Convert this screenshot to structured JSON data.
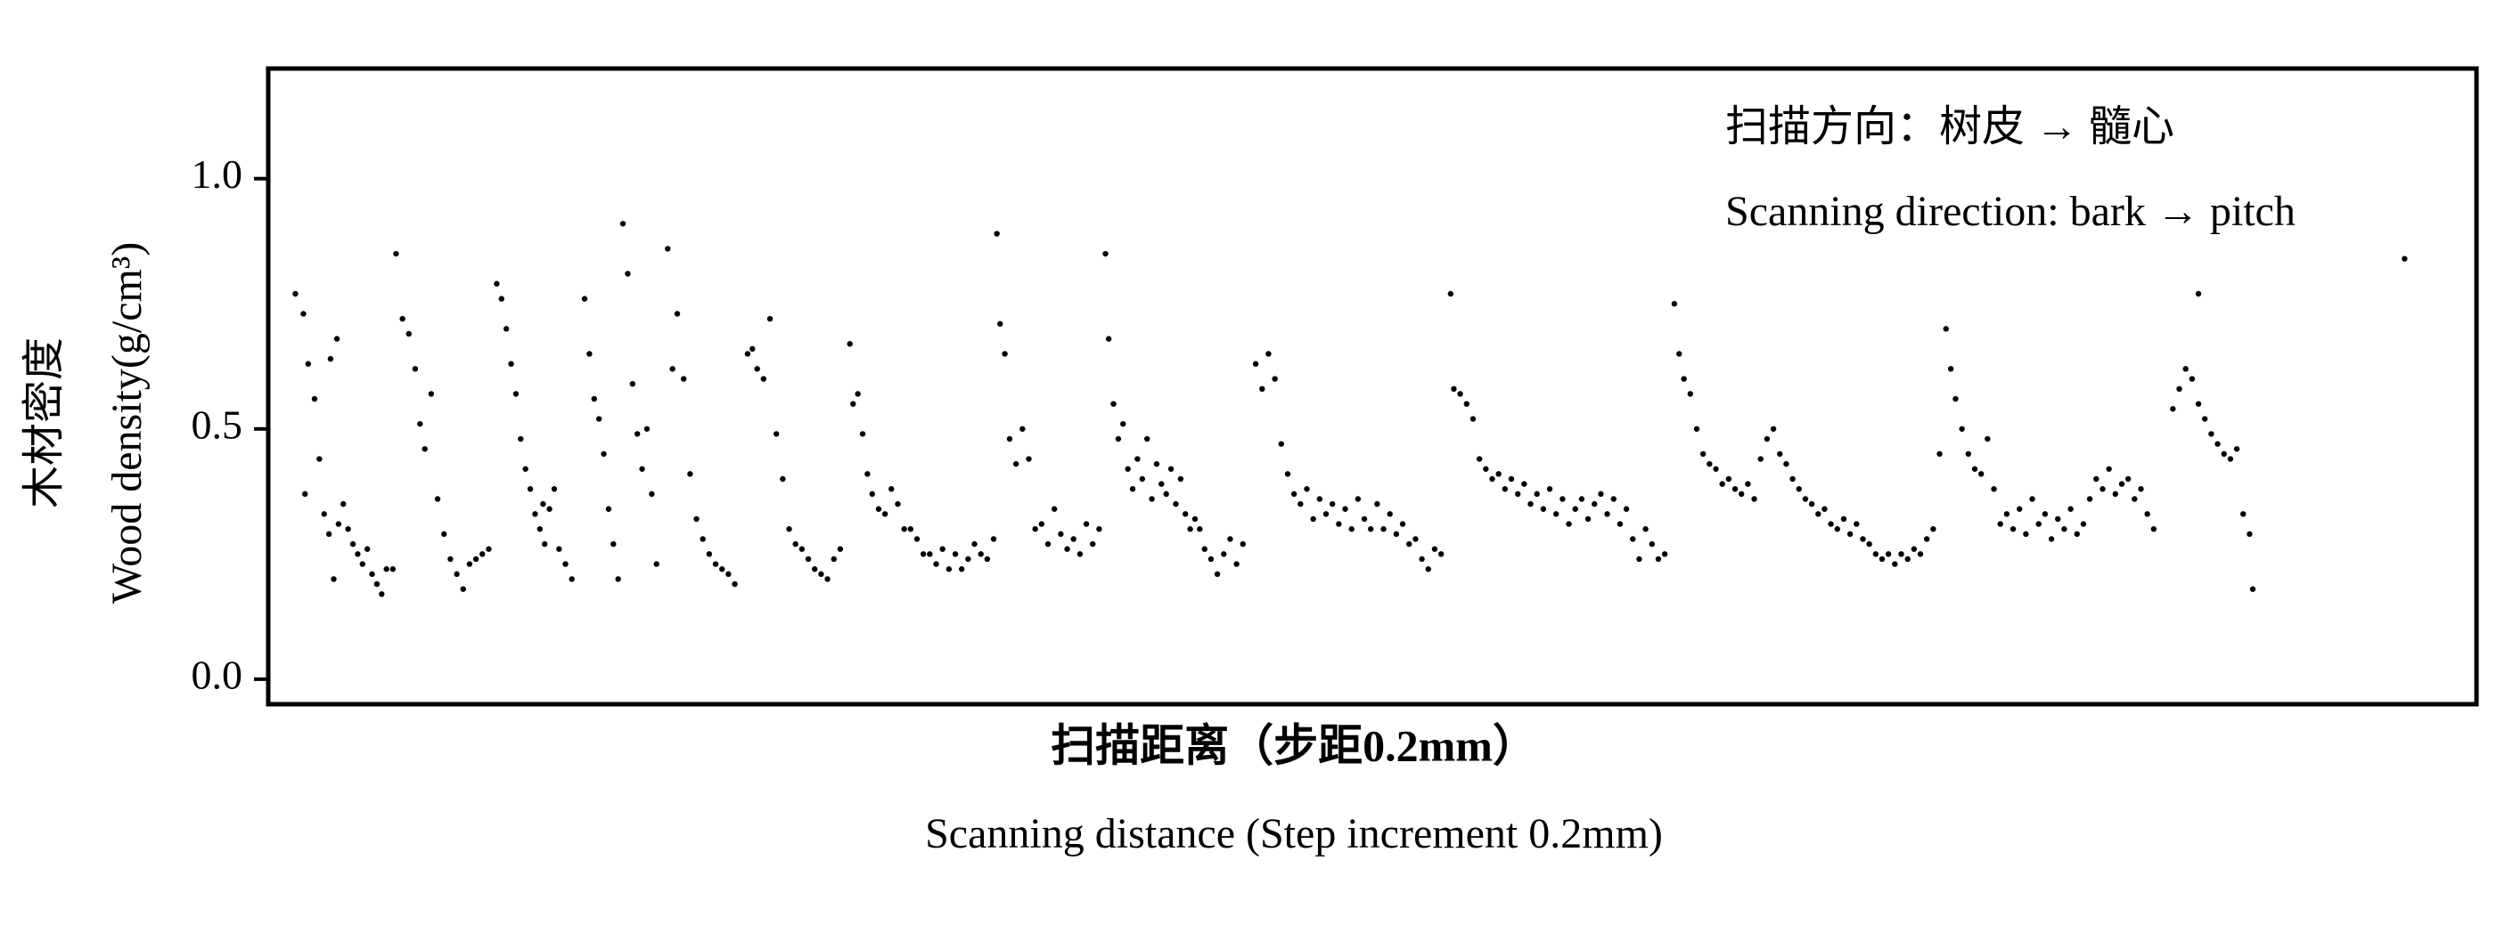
{
  "chart_data": {
    "type": "scatter",
    "annotations": [
      "扫描方向：树皮 → 髓心",
      "Scanning direction: bark → pitch"
    ],
    "x_label": [
      "扫描距离（步距0.2mm）",
      "Scanning distance (Step increment 0.2mm)"
    ],
    "y_label": [
      "木材密度",
      "Wood density(g/cm³)"
    ],
    "xlim": [
      168,
      1550
    ],
    "ylim": [
      -0.05,
      1.22
    ],
    "yticks": [
      {
        "value": 0,
        "label": "0.0"
      },
      0.5,
      {
        "value": 1,
        "label": "1.0"
      }
    ],
    "color": "#000000",
    "x": [
      185,
      190,
      193,
      197,
      200,
      203,
      206,
      209,
      212,
      215,
      218,
      221,
      224,
      227,
      230,
      233,
      236,
      239,
      242,
      246,
      191,
      207,
      211,
      248,
      252,
      256,
      260,
      263,
      266,
      270,
      274,
      278,
      282,
      286,
      290,
      294,
      298,
      302,
      306,
      311,
      314,
      317,
      320,
      323,
      326,
      329,
      332,
      335,
      338,
      341,
      344,
      347,
      350,
      354,
      358,
      340,
      366,
      369,
      372,
      375,
      378,
      381,
      384,
      387,
      390,
      393,
      396,
      399,
      402,
      405,
      408,
      411,
      418,
      421,
      424,
      428,
      432,
      436,
      440,
      444,
      448,
      452,
      456,
      460,
      468,
      471,
      474,
      478,
      482,
      486,
      490,
      494,
      498,
      502,
      506,
      510,
      514,
      518,
      522,
      526,
      532,
      534,
      537,
      540,
      543,
      546,
      550,
      554,
      558,
      562,
      566,
      570,
      574,
      578,
      582,
      586,
      590,
      594,
      598,
      602,
      606,
      610,
      614,
      618,
      622,
      624,
      626,
      629,
      632,
      636,
      640,
      644,
      648,
      652,
      656,
      660,
      664,
      668,
      672,
      676,
      680,
      684,
      688,
      692,
      694,
      697,
      700,
      703,
      706,
      709,
      712,
      715,
      718,
      721,
      724,
      727,
      730,
      733,
      736,
      739,
      742,
      745,
      748,
      751,
      754,
      758,
      762,
      766,
      770,
      774,
      778,
      786,
      790,
      794,
      798,
      802,
      806,
      810,
      814,
      818,
      822,
      826,
      830,
      834,
      838,
      842,
      846,
      850,
      854,
      858,
      862,
      866,
      870,
      874,
      878,
      882,
      886,
      890,
      894,
      898,
      902,
      908,
      910,
      914,
      918,
      922,
      926,
      930,
      934,
      938,
      942,
      946,
      950,
      954,
      958,
      962,
      966,
      970,
      974,
      978,
      982,
      986,
      990,
      994,
      998,
      1002,
      1006,
      1010,
      1014,
      1018,
      1022,
      1026,
      1030,
      1034,
      1038,
      1042,
      1048,
      1051,
      1054,
      1058,
      1062,
      1066,
      1070,
      1074,
      1078,
      1082,
      1086,
      1090,
      1094,
      1098,
      1102,
      1106,
      1110,
      1114,
      1118,
      1122,
      1126,
      1130,
      1134,
      1138,
      1142,
      1146,
      1150,
      1154,
      1158,
      1162,
      1166,
      1170,
      1174,
      1178,
      1182,
      1186,
      1190,
      1194,
      1198,
      1202,
      1206,
      1210,
      1214,
      1218,
      1221,
      1224,
      1228,
      1232,
      1236,
      1240,
      1244,
      1248,
      1252,
      1256,
      1260,
      1264,
      1268,
      1272,
      1276,
      1280,
      1284,
      1288,
      1292,
      1296,
      1300,
      1304,
      1308,
      1312,
      1316,
      1320,
      1324,
      1328,
      1332,
      1336,
      1340,
      1344,
      1348,
      1360,
      1364,
      1368,
      1372,
      1376,
      1380,
      1384,
      1388,
      1392,
      1396,
      1400,
      1404,
      1408,
      1410,
      1376,
      1505
    ],
    "values": [
      0.77,
      0.73,
      0.63,
      0.56,
      0.44,
      0.33,
      0.29,
      0.2,
      0.31,
      0.35,
      0.3,
      0.27,
      0.25,
      0.23,
      0.26,
      0.21,
      0.19,
      0.17,
      0.22,
      0.22,
      0.37,
      0.64,
      0.68,
      0.85,
      0.72,
      0.69,
      0.62,
      0.51,
      0.46,
      0.57,
      0.36,
      0.29,
      0.24,
      0.21,
      0.18,
      0.23,
      0.24,
      0.25,
      0.26,
      0.79,
      0.76,
      0.7,
      0.63,
      0.57,
      0.48,
      0.42,
      0.38,
      0.33,
      0.3,
      0.27,
      0.34,
      0.38,
      0.26,
      0.23,
      0.2,
      0.35,
      0.76,
      0.65,
      0.56,
      0.52,
      0.45,
      0.34,
      0.27,
      0.2,
      0.91,
      0.81,
      0.59,
      0.49,
      0.42,
      0.5,
      0.37,
      0.23,
      0.86,
      0.62,
      0.73,
      0.6,
      0.41,
      0.32,
      0.28,
      0.25,
      0.23,
      0.22,
      0.21,
      0.19,
      0.65,
      0.66,
      0.62,
      0.6,
      0.72,
      0.49,
      0.4,
      0.3,
      0.27,
      0.26,
      0.24,
      0.22,
      0.21,
      0.2,
      0.24,
      0.26,
      0.67,
      0.55,
      0.57,
      0.49,
      0.41,
      0.37,
      0.34,
      0.33,
      0.38,
      0.35,
      0.3,
      0.3,
      0.28,
      0.25,
      0.25,
      0.23,
      0.26,
      0.22,
      0.25,
      0.22,
      0.24,
      0.27,
      0.25,
      0.24,
      0.28,
      0.89,
      0.71,
      0.65,
      0.48,
      0.43,
      0.5,
      0.44,
      0.3,
      0.31,
      0.27,
      0.34,
      0.29,
      0.26,
      0.28,
      0.25,
      0.31,
      0.27,
      0.3,
      0.85,
      0.68,
      0.55,
      0.48,
      0.51,
      0.42,
      0.38,
      0.44,
      0.4,
      0.48,
      0.36,
      0.43,
      0.39,
      0.37,
      0.42,
      0.35,
      0.4,
      0.33,
      0.3,
      0.32,
      0.3,
      0.26,
      0.24,
      0.21,
      0.25,
      0.28,
      0.23,
      0.27,
      0.63,
      0.58,
      0.65,
      0.6,
      0.47,
      0.41,
      0.37,
      0.35,
      0.38,
      0.32,
      0.36,
      0.33,
      0.35,
      0.31,
      0.34,
      0.3,
      0.36,
      0.32,
      0.3,
      0.35,
      0.3,
      0.33,
      0.29,
      0.31,
      0.27,
      0.28,
      0.24,
      0.22,
      0.26,
      0.25,
      0.77,
      0.58,
      0.57,
      0.55,
      0.52,
      0.44,
      0.42,
      0.4,
      0.41,
      0.38,
      0.4,
      0.37,
      0.39,
      0.35,
      0.37,
      0.34,
      0.38,
      0.33,
      0.36,
      0.31,
      0.34,
      0.36,
      0.32,
      0.35,
      0.37,
      0.33,
      0.36,
      0.31,
      0.34,
      0.28,
      0.24,
      0.3,
      0.27,
      0.24,
      0.25,
      0.75,
      0.65,
      0.6,
      0.57,
      0.5,
      0.45,
      0.43,
      0.42,
      0.39,
      0.4,
      0.38,
      0.37,
      0.39,
      0.36,
      0.44,
      0.48,
      0.5,
      0.45,
      0.43,
      0.4,
      0.38,
      0.36,
      0.35,
      0.33,
      0.34,
      0.31,
      0.3,
      0.32,
      0.29,
      0.31,
      0.28,
      0.27,
      0.25,
      0.24,
      0.25,
      0.23,
      0.25,
      0.24,
      0.26,
      0.25,
      0.28,
      0.3,
      0.45,
      0.7,
      0.62,
      0.56,
      0.5,
      0.45,
      0.42,
      0.41,
      0.48,
      0.38,
      0.31,
      0.33,
      0.3,
      0.34,
      0.29,
      0.36,
      0.31,
      0.33,
      0.28,
      0.32,
      0.3,
      0.34,
      0.29,
      0.31,
      0.36,
      0.4,
      0.38,
      0.42,
      0.37,
      0.39,
      0.4,
      0.36,
      0.38,
      0.33,
      0.3,
      0.54,
      0.58,
      0.62,
      0.6,
      0.55,
      0.52,
      0.49,
      0.47,
      0.45,
      0.44,
      0.46,
      0.33,
      0.29,
      0.18,
      0.77,
      0.84
    ]
  }
}
